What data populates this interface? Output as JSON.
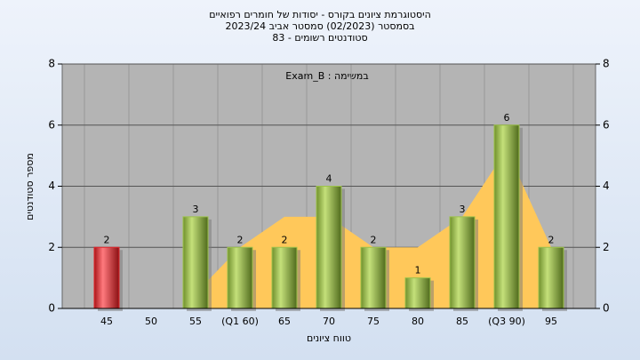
{
  "chart_data": {
    "type": "bar",
    "title": "היסטוגרמת ציונים בקורס - יסודות של חומרים רפואיים",
    "subtitle": "בסמסטר  (02/2023)  סמסטר אביב 2023/24",
    "subtitle2": "סטודנטים רשומים - 83",
    "annotation": "במשימה : Exam_B",
    "x_label": "טווח ציונים",
    "y_label": "מספר סטודנטים",
    "categories": [
      "45",
      "50",
      "55",
      "(Q1 60)",
      "65",
      "70",
      "75",
      "80",
      "85",
      "(Q3 90)",
      "95"
    ],
    "values": [
      2,
      0,
      3,
      2,
      2,
      4,
      2,
      1,
      3,
      6,
      2
    ],
    "value_labels": [
      "2",
      null,
      "3",
      "2",
      "2",
      "4",
      "2",
      "1",
      "3",
      "6",
      "2"
    ],
    "colors": [
      "#e0262b",
      "#9cc24a",
      "#9cc24a",
      "#9cc24a",
      "#9cc24a",
      "#9cc24a",
      "#9cc24a",
      "#9cc24a",
      "#9cc24a",
      "#9cc24a",
      "#9cc24a"
    ],
    "curve": {
      "color": "#ffc85a",
      "values": [
        null,
        null,
        0.5,
        2,
        3,
        3,
        2,
        2,
        3,
        5.2,
        2
      ]
    },
    "ylim": [
      0,
      8
    ],
    "yticks": [
      0,
      2,
      4,
      6,
      8
    ],
    "y2lim": [
      0,
      8
    ],
    "y2ticks": [
      0,
      2,
      4,
      6,
      8
    ],
    "grid": true
  }
}
